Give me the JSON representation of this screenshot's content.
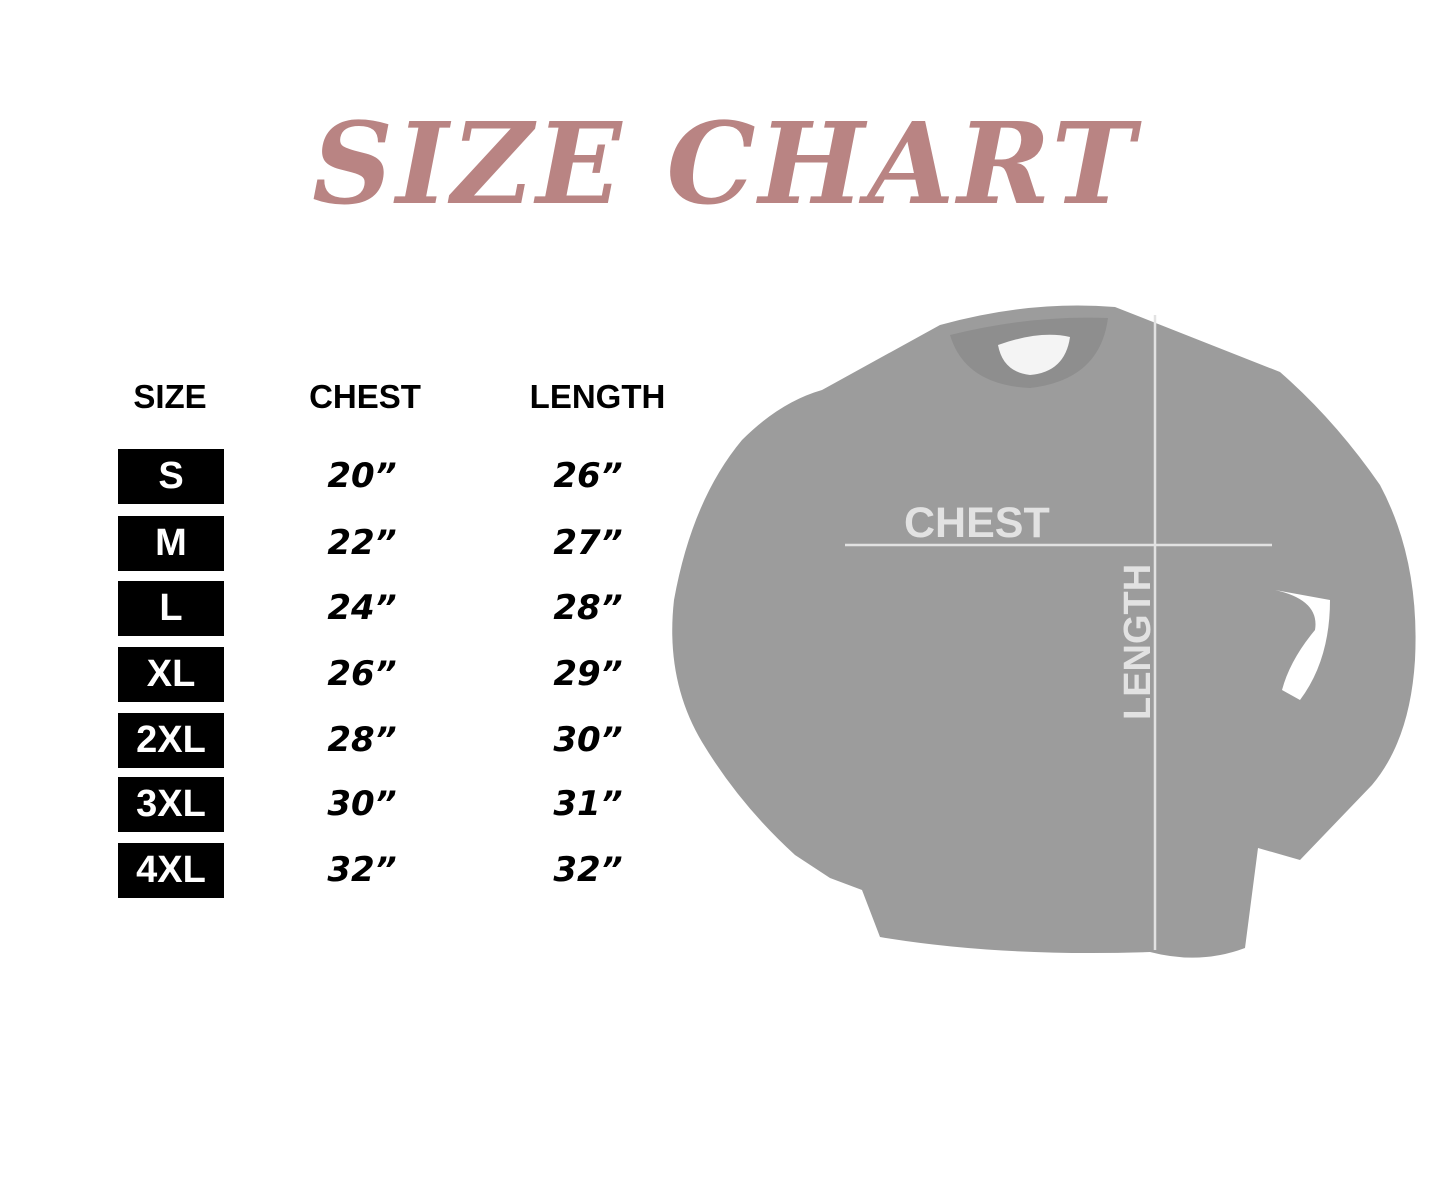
{
  "title": "SIZE CHART",
  "colors": {
    "title": "#b98483",
    "size_box": "#000000",
    "shirt": "#9a9a9a",
    "measure_lines": "#e2e2e2"
  },
  "table": {
    "headers": [
      "SIZE",
      "CHEST",
      "LENGTH"
    ],
    "rows": [
      {
        "size": "S",
        "chest": "20”",
        "length": "26”"
      },
      {
        "size": "M",
        "chest": "22”",
        "length": "27”"
      },
      {
        "size": "L",
        "chest": "24”",
        "length": "28”"
      },
      {
        "size": "XL",
        "chest": "26”",
        "length": "29”"
      },
      {
        "size": "2XL",
        "chest": "28”",
        "length": "30”"
      },
      {
        "size": "3XL",
        "chest": "30”",
        "length": "31”"
      },
      {
        "size": "4XL",
        "chest": "32”",
        "length": "32”"
      }
    ]
  },
  "diagram": {
    "chest_label": "CHEST",
    "length_label": "LENGTH"
  }
}
